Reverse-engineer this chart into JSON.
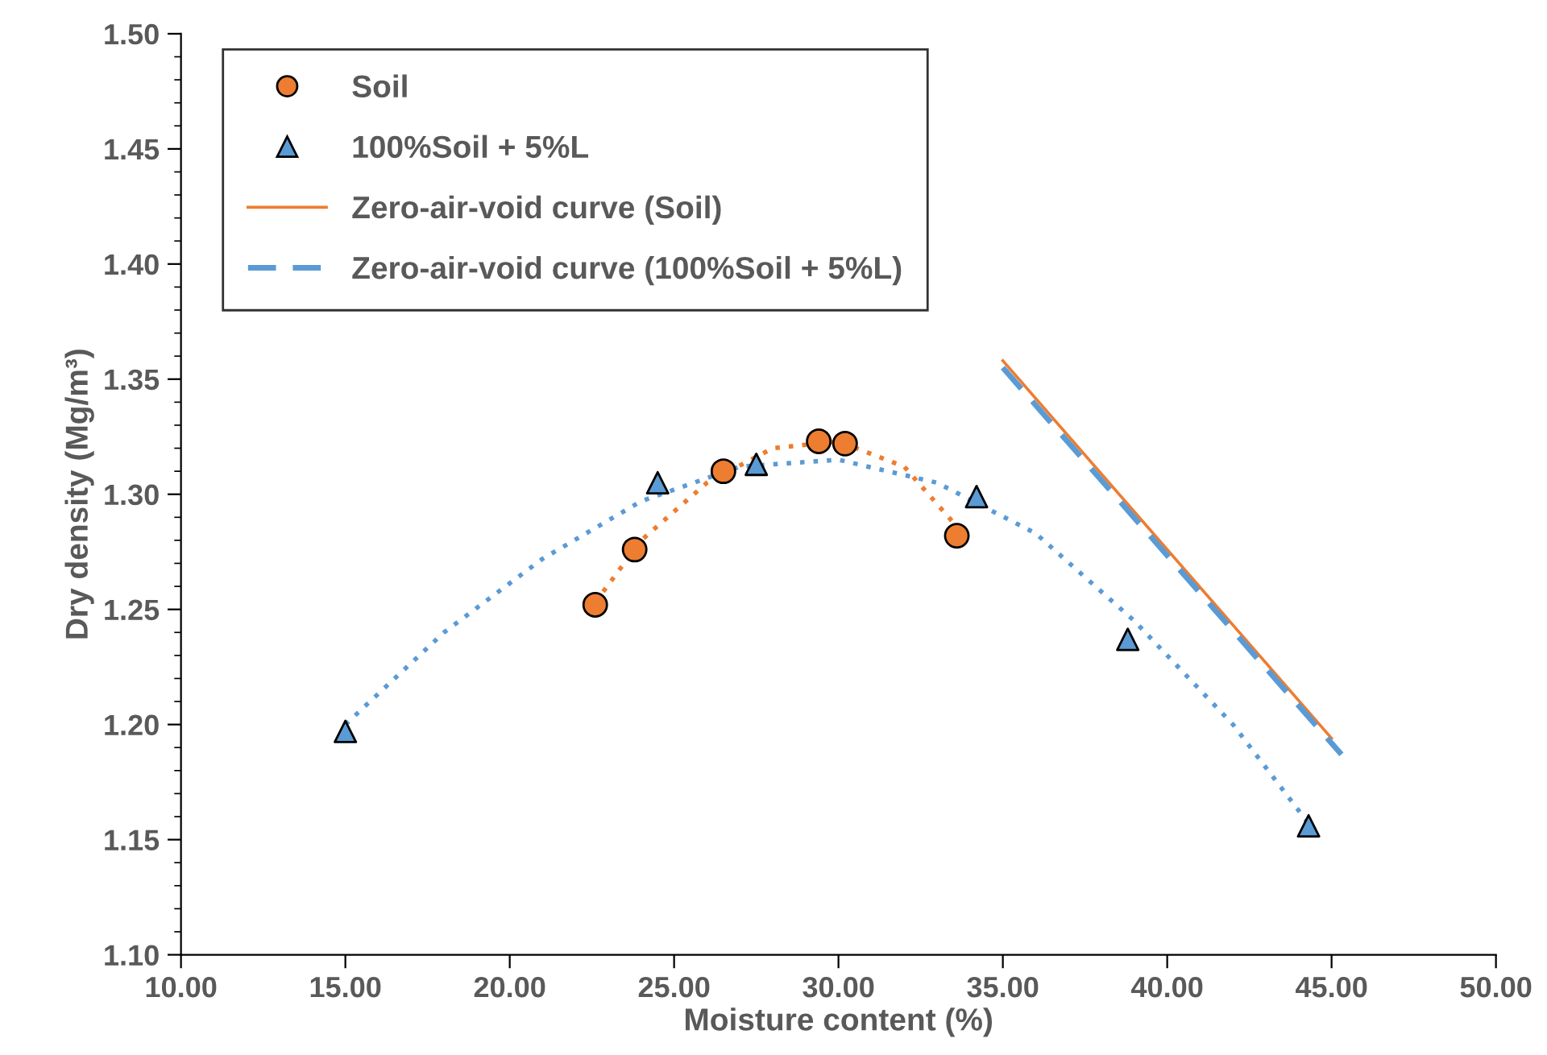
{
  "chart_data": {
    "type": "scatter",
    "xlabel": "Moisture content (%)",
    "ylabel": "Dry density (Mg/m³)",
    "xlim": [
      10,
      50
    ],
    "xticks": [
      {
        "value": 10,
        "label": "10.00"
      },
      {
        "value": 15,
        "label": "15.00"
      },
      {
        "value": 20,
        "label": "20.00"
      },
      {
        "value": 25,
        "label": "25.00"
      },
      {
        "value": 30,
        "label": "30.00"
      },
      {
        "value": 35,
        "label": "35.00"
      },
      {
        "value": 40,
        "label": "40.00"
      },
      {
        "value": 45,
        "label": "45.00"
      },
      {
        "value": 50,
        "label": "50.00"
      }
    ],
    "ylim": [
      1.1,
      1.5
    ],
    "yticks": [
      {
        "value": 1.1,
        "label": "1.10"
      },
      {
        "value": 1.11,
        "label": null
      },
      {
        "value": 1.12,
        "label": null
      },
      {
        "value": 1.13,
        "label": null
      },
      {
        "value": 1.14,
        "label": null
      },
      {
        "value": 1.15,
        "label": "1.15"
      },
      {
        "value": 1.16,
        "label": null
      },
      {
        "value": 1.17,
        "label": null
      },
      {
        "value": 1.18,
        "label": null
      },
      {
        "value": 1.19,
        "label": null
      },
      {
        "value": 1.2,
        "label": "1.20"
      },
      {
        "value": 1.21,
        "label": null
      },
      {
        "value": 1.22,
        "label": null
      },
      {
        "value": 1.23,
        "label": null
      },
      {
        "value": 1.24,
        "label": null
      },
      {
        "value": 1.25,
        "label": "1.25"
      },
      {
        "value": 1.26,
        "label": null
      },
      {
        "value": 1.27,
        "label": null
      },
      {
        "value": 1.28,
        "label": null
      },
      {
        "value": 1.29,
        "label": null
      },
      {
        "value": 1.3,
        "label": "1.30"
      },
      {
        "value": 1.31,
        "label": null
      },
      {
        "value": 1.32,
        "label": null
      },
      {
        "value": 1.33,
        "label": null
      },
      {
        "value": 1.34,
        "label": null
      },
      {
        "value": 1.35,
        "label": "1.35"
      },
      {
        "value": 1.36,
        "label": null
      },
      {
        "value": 1.37,
        "label": null
      },
      {
        "value": 1.38,
        "label": null
      },
      {
        "value": 1.39,
        "label": null
      },
      {
        "value": 1.4,
        "label": "1.40"
      },
      {
        "value": 1.41,
        "label": null
      },
      {
        "value": 1.42,
        "label": null
      },
      {
        "value": 1.43,
        "label": null
      },
      {
        "value": 1.44,
        "label": null
      },
      {
        "value": 1.45,
        "label": "1.45"
      },
      {
        "value": 1.46,
        "label": null
      },
      {
        "value": 1.47,
        "label": null
      },
      {
        "value": 1.48,
        "label": null
      },
      {
        "value": 1.49,
        "label": null
      },
      {
        "value": 1.5,
        "label": "1.50"
      }
    ],
    "grid": false,
    "legend": "top left",
    "series": [
      {
        "type": "line",
        "color": "#ed7d31",
        "line_style": "dotted",
        "marker": "none",
        "x": [
          22.6,
          24,
          26,
          28,
          30,
          32,
          33.6
        ],
        "values": [
          1.253,
          1.28,
          1.305,
          1.32,
          1.323,
          1.312,
          1.286
        ]
      },
      {
        "type": "line",
        "color": "#5b9bd5",
        "line_style": "dotted",
        "marker": "none",
        "x": [
          15,
          18,
          21,
          24,
          27,
          30,
          33,
          36,
          39,
          42,
          44.3
        ],
        "values": [
          1.2,
          1.24,
          1.272,
          1.297,
          1.312,
          1.315,
          1.305,
          1.283,
          1.245,
          1.2,
          1.157
        ]
      },
      {
        "name": "Soil",
        "color": "#ed7d31",
        "marker": "circle",
        "x": [
          22.6,
          23.8,
          26.5,
          29.4,
          30.2,
          33.6
        ],
        "values": [
          1.252,
          1.276,
          1.31,
          1.323,
          1.322,
          1.282
        ]
      },
      {
        "name": "100%Soil + 5%L",
        "color": "#5b9bd5",
        "marker": "triangle",
        "x": [
          15.0,
          24.5,
          27.5,
          34.2,
          38.8,
          44.3
        ],
        "values": [
          1.197,
          1.305,
          1.313,
          1.299,
          1.237,
          1.156
        ]
      },
      {
        "name": "Zero-air-void curve (Soil)",
        "type": "line",
        "color": "#ed7d31",
        "line_style": "solid",
        "marker": "none",
        "x": [
          35.0,
          45.0
        ],
        "values": [
          1.358,
          1.194
        ]
      },
      {
        "name": "Zero-air-void curve (100%Soil + 5%L)",
        "type": "line",
        "color": "#5b9bd5",
        "line_style": "dashed",
        "marker": "none",
        "x": [
          35.0,
          45.3
        ],
        "values": [
          1.355,
          1.187
        ]
      }
    ]
  }
}
